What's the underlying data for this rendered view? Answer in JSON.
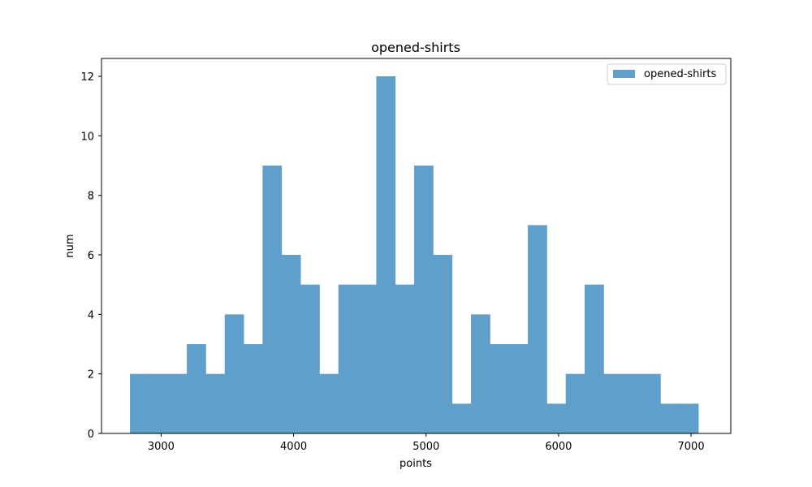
{
  "chart_data": {
    "type": "bar",
    "title": "opened-shirts",
    "xlabel": "points",
    "ylabel": "num",
    "xlim": [
      2550,
      7300
    ],
    "ylim": [
      0,
      12.6
    ],
    "xticks": [
      3000,
      4000,
      5000,
      6000,
      7000
    ],
    "yticks": [
      0,
      2,
      4,
      6,
      8,
      10,
      12
    ],
    "grid": false,
    "legend": {
      "position": "upper-right",
      "entries": [
        "opened-shirts"
      ]
    },
    "series": [
      {
        "name": "opened-shirts",
        "color": "#5f9fcc",
        "bin_edges": [
          2765,
          2908,
          3051,
          3194,
          3337,
          3480,
          3623,
          3766,
          3909,
          4052,
          4195,
          4338,
          4481,
          4624,
          4767,
          4910,
          5053,
          5196,
          5339,
          5482,
          5625,
          5768,
          5911,
          6054,
          6197,
          6340,
          6483,
          6626,
          6769,
          6912,
          7055
        ],
        "counts": [
          2,
          2,
          2,
          3,
          2,
          4,
          3,
          9,
          6,
          5,
          2,
          5,
          5,
          12,
          5,
          9,
          6,
          1,
          4,
          3,
          3,
          7,
          1,
          2,
          5,
          2,
          2,
          2,
          1,
          1
        ]
      }
    ]
  }
}
